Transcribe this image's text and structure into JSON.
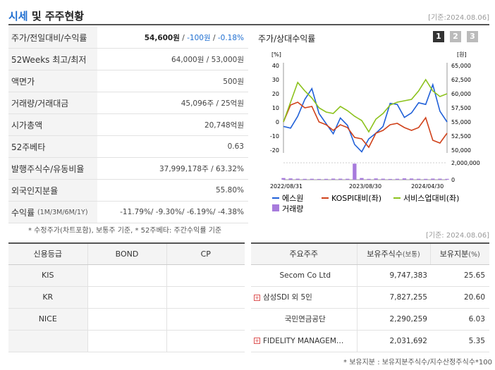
{
  "header": {
    "title_accent": "시세",
    "title_rest": " 및 주주현황",
    "ref_date": "[기준:2024.08.06]"
  },
  "summary": [
    {
      "label": "주가/전일대비/수익률",
      "price": "54,600원",
      "sep1": " / ",
      "change": "-100원",
      "sep2": " / ",
      "rate": "-0.18%"
    },
    {
      "label": "52Weeks 최고/최저",
      "value": "64,000원 / 53,000원"
    },
    {
      "label": "액면가",
      "value": "500원"
    },
    {
      "label": "거래량/거래대금",
      "value": "45,096주 / 25억원"
    },
    {
      "label": "시가총액",
      "value": "20,748억원"
    },
    {
      "label": "52주베타",
      "value": "0.63"
    },
    {
      "label": "발행주식수/유동비율",
      "value": "37,999,178주 / 63.32%"
    },
    {
      "label": "외국인지분율",
      "value": "55.80%"
    },
    {
      "label": "수익률",
      "label_small": "(1M/3M/6M/1Y)",
      "value": "-11.79%/ -9.30%/ -6.19%/ -4.38%"
    }
  ],
  "footnote1": "* 수정주가(차트포함), 보통주 기준, * 52주베타: 주간수익률 기준",
  "chart_panel": {
    "title": "주가/상대수익률",
    "pages": [
      "1",
      "2",
      "3"
    ],
    "ref_date": "[기준: 2024.08.06]"
  },
  "chart_data": {
    "type": "line",
    "left_axis_unit": "[%]",
    "right_axis_unit": "[원]",
    "left_ticks": [
      "40",
      "30",
      "20",
      "10",
      "0",
      "-10",
      "-20"
    ],
    "right_ticks": [
      "65,000",
      "62,500",
      "60,000",
      "57,500",
      "55,000",
      "52,500",
      "50,000"
    ],
    "volume_ticks": [
      "2,000,000",
      "0"
    ],
    "x_ticks": [
      "2022/08/31",
      "2023/08/30",
      "2024/04/30"
    ],
    "ylim_left": [
      -20,
      40
    ],
    "ylim_right": [
      50000,
      65000
    ],
    "series": [
      {
        "name": "에스원",
        "color": "#2060d8",
        "axis": "right",
        "values": [
          54200,
          53900,
          56000,
          59000,
          60900,
          56500,
          54700,
          52900,
          55700,
          54400,
          51000,
          49700,
          52000,
          53000,
          54200,
          58300,
          58100,
          55800,
          56600,
          58400,
          58100,
          61600,
          56900,
          55000
        ]
      },
      {
        "name": "KOSPI대비(좌)",
        "color": "#d0421b",
        "axis": "left",
        "values": [
          0,
          12,
          14,
          10,
          11,
          0,
          -2,
          -6,
          -2,
          -4,
          -11,
          -12,
          -18,
          -8,
          -6,
          -2,
          -1,
          -4,
          -6,
          -4,
          3,
          -13,
          -15,
          -8
        ]
      },
      {
        "name": "서비스업대비(좌)",
        "color": "#8cc21d",
        "axis": "left",
        "values": [
          0,
          14,
          28,
          22,
          17,
          10,
          7,
          6,
          11,
          8,
          4,
          1,
          -7,
          2,
          6,
          12,
          14,
          15,
          16,
          22,
          30,
          22,
          18,
          20
        ]
      }
    ],
    "volume": {
      "name": "거래량",
      "color": "#a77bdc",
      "max": 2000000,
      "values": [
        200000,
        150000,
        120000,
        100000,
        110000,
        90000,
        100000,
        130000,
        120000,
        110000,
        1900000,
        200000,
        100000,
        150000,
        120000,
        90000,
        110000,
        160000,
        140000,
        110000,
        100000,
        130000,
        120000,
        100000
      ]
    },
    "legend": [
      "에스원",
      "KOSPI대비(좌)",
      "서비스업대비(좌)",
      "거래량"
    ]
  },
  "credit": {
    "headers": [
      "신용등급",
      "BOND",
      "CP"
    ],
    "rows": [
      {
        "agency": "KIS",
        "bond": "",
        "cp": ""
      },
      {
        "agency": "KR",
        "bond": "",
        "cp": ""
      },
      {
        "agency": "NICE",
        "bond": "",
        "cp": ""
      },
      {
        "agency": "",
        "bond": "",
        "cp": ""
      }
    ]
  },
  "holders": {
    "headers": [
      "주요주주",
      "보유주식수",
      "(보통)",
      "보유지분",
      "(%)"
    ],
    "rows": [
      {
        "name": "Secom Co Ltd",
        "shares": "9,747,383",
        "pct": "25.65",
        "expand": false
      },
      {
        "name": "삼성SDI 외 5인",
        "shares": "7,827,255",
        "pct": "20.60",
        "expand": true
      },
      {
        "name": "국민연금공단",
        "shares": "2,290,259",
        "pct": "6.03",
        "expand": false
      },
      {
        "name": "FIDELITY MANAGEM…",
        "shares": "2,031,692",
        "pct": "5.35",
        "expand": true
      }
    ]
  },
  "footnote2": "* 보유지분 : 보유지분주식수/지수산정주식수*100",
  "colors": {
    "accent": "#1f6fd1",
    "header_line": "#555555",
    "label_bg": "#f4f4f4"
  }
}
